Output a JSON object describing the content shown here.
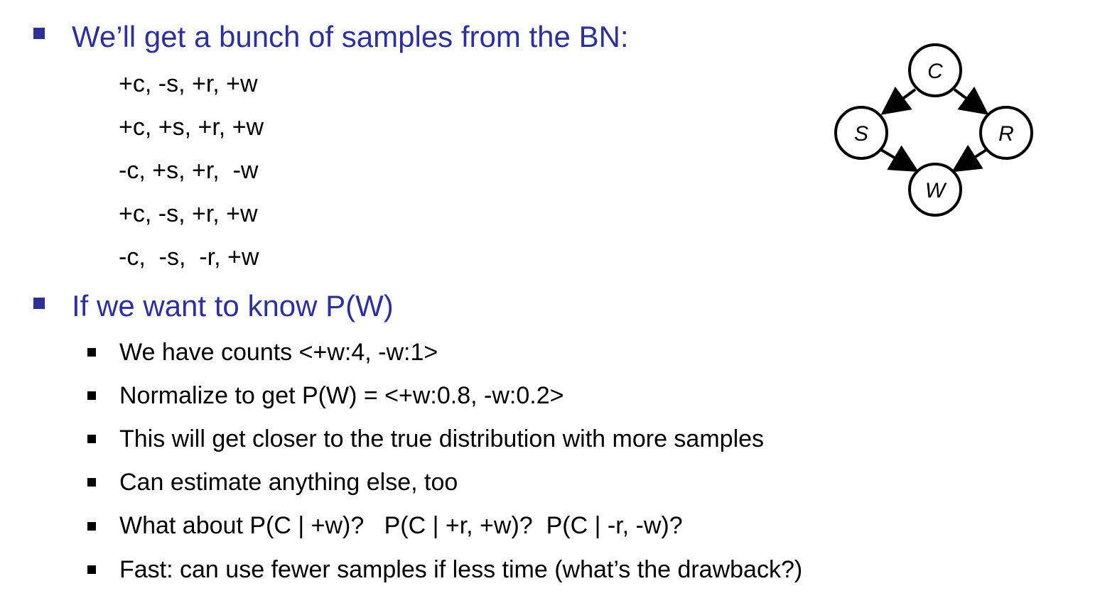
{
  "heading1": "We’ll get a bunch of samples from the BN:",
  "samples": [
    "+c, -s, +r, +w",
    "+c, +s, +r, +w",
    "-c, +s, +r,  -w",
    "+c, -s, +r, +w",
    "-c,  -s,  -r, +w"
  ],
  "heading2": "If we want to know P(W)",
  "bullets": [
    "We have counts <+w:4, -w:1>",
    "Normalize to get P(W) = <+w:0.8, -w:0.2>",
    "This will get closer to the true distribution with more samples",
    "Can estimate anything else, too",
    "What about P(C | +w)?   P(C | +r, +w)?  P(C | -r, -w)?",
    "Fast: can use fewer samples if less time (what’s the drawback?)"
  ],
  "network": {
    "nodes": [
      "C",
      "S",
      "R",
      "W"
    ],
    "edges": [
      [
        "C",
        "S"
      ],
      [
        "C",
        "R"
      ],
      [
        "S",
        "W"
      ],
      [
        "R",
        "W"
      ]
    ]
  },
  "colors": {
    "heading": "#2e3192",
    "body": "#000000"
  }
}
